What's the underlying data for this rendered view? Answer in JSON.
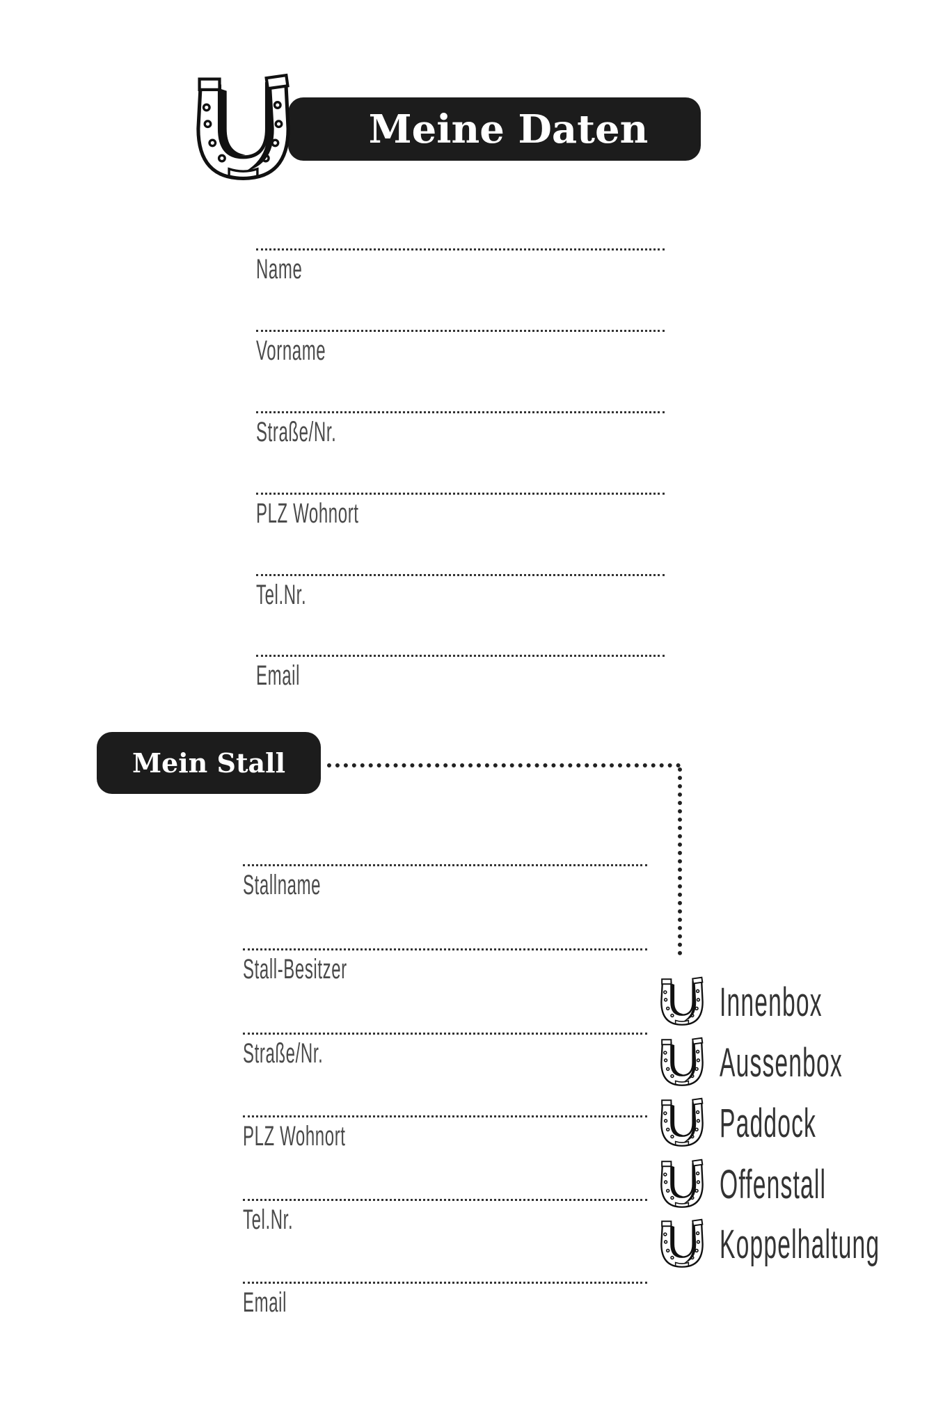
{
  "header": {
    "title": "Meine Daten",
    "icon": "horseshoe-icon"
  },
  "personal_fields": [
    {
      "label": "Name"
    },
    {
      "label": "Vorname"
    },
    {
      "label": "Straße/Nr."
    },
    {
      "label": "PLZ Wohnort"
    },
    {
      "label": "Tel.Nr."
    },
    {
      "label": "Email"
    }
  ],
  "stable": {
    "title": "Mein Stall",
    "fields": [
      {
        "label": "Stallname"
      },
      {
        "label": "Stall-Besitzer"
      },
      {
        "label": "Straße/Nr."
      },
      {
        "label": "PLZ Wohnort"
      },
      {
        "label": "Tel.Nr."
      },
      {
        "label": "Email"
      }
    ],
    "options": [
      {
        "label": "Innenbox",
        "icon": "horseshoe-icon"
      },
      {
        "label": "Aussenbox",
        "icon": "horseshoe-icon"
      },
      {
        "label": "Paddock",
        "icon": "horseshoe-icon"
      },
      {
        "label": "Offenstall",
        "icon": "horseshoe-icon"
      },
      {
        "label": "Koppelhaltung",
        "icon": "horseshoe-icon"
      }
    ]
  }
}
